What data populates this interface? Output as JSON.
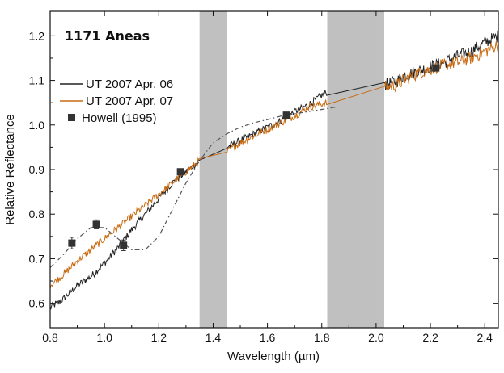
{
  "chart_data": {
    "type": "line",
    "title": "1171 Aneas",
    "xlabel": "Wavelength (µm)",
    "ylabel": "Relative Reflectance",
    "xlim": [
      0.8,
      2.45
    ],
    "ylim": [
      0.545,
      1.255
    ],
    "xticks": [
      0.8,
      1.0,
      1.2,
      1.4,
      1.6,
      1.8,
      2.0,
      2.2,
      2.4
    ],
    "xtick_labels": [
      "0.8",
      "1.0",
      "1.2",
      "1.4",
      "1.6",
      "1.8",
      "2.0",
      "2.2",
      "2.4"
    ],
    "yticks": [
      0.6,
      0.7,
      0.8,
      0.9,
      1.0,
      1.1,
      1.2
    ],
    "ytick_labels": [
      "0.6",
      "0.7",
      "0.8",
      "0.9",
      "1.0",
      "1.1",
      "1.2"
    ],
    "grid": false,
    "legend_position": "top-left",
    "shaded_regions": [
      {
        "x0": 1.35,
        "x1": 1.45,
        "color": "#c0c0c0"
      },
      {
        "x0": 1.82,
        "x1": 2.03,
        "color": "#c0c0c0"
      }
    ],
    "series": [
      {
        "name": "UT 2007 Apr. 06",
        "style": "line",
        "color": "#222222",
        "noise": 0.008,
        "points": [
          {
            "x": 0.8,
            "y": 0.59
          },
          {
            "x": 0.85,
            "y": 0.61
          },
          {
            "x": 0.9,
            "y": 0.64
          },
          {
            "x": 0.95,
            "y": 0.66
          },
          {
            "x": 1.0,
            "y": 0.69
          },
          {
            "x": 1.05,
            "y": 0.725
          },
          {
            "x": 1.1,
            "y": 0.765
          },
          {
            "x": 1.15,
            "y": 0.8
          },
          {
            "x": 1.2,
            "y": 0.835
          },
          {
            "x": 1.25,
            "y": 0.87
          },
          {
            "x": 1.3,
            "y": 0.895
          },
          {
            "x": 1.35,
            "y": 0.92
          },
          {
            "x": 1.45,
            "y": 0.95
          },
          {
            "x": 1.5,
            "y": 0.965
          },
          {
            "x": 1.55,
            "y": 0.98
          },
          {
            "x": 1.6,
            "y": 0.995
          },
          {
            "x": 1.65,
            "y": 1.01
          },
          {
            "x": 1.7,
            "y": 1.03
          },
          {
            "x": 1.75,
            "y": 1.045
          },
          {
            "x": 1.82,
            "y": 1.075
          },
          {
            "x": 2.03,
            "y": 1.09
          },
          {
            "x": 2.08,
            "y": 1.1
          },
          {
            "x": 2.1,
            "y": 1.11
          },
          {
            "x": 2.15,
            "y": 1.12
          },
          {
            "x": 2.2,
            "y": 1.13
          },
          {
            "x": 2.25,
            "y": 1.14
          },
          {
            "x": 2.3,
            "y": 1.155
          },
          {
            "x": 2.35,
            "y": 1.165
          },
          {
            "x": 2.4,
            "y": 1.185
          },
          {
            "x": 2.45,
            "y": 1.2
          }
        ]
      },
      {
        "name": "UT 2007 Apr. 07",
        "style": "line",
        "color": "#c86a10",
        "noise": 0.008,
        "points": [
          {
            "x": 0.8,
            "y": 0.64
          },
          {
            "x": 0.85,
            "y": 0.665
          },
          {
            "x": 0.9,
            "y": 0.695
          },
          {
            "x": 0.95,
            "y": 0.72
          },
          {
            "x": 1.0,
            "y": 0.745
          },
          {
            "x": 1.05,
            "y": 0.77
          },
          {
            "x": 1.1,
            "y": 0.795
          },
          {
            "x": 1.15,
            "y": 0.82
          },
          {
            "x": 1.2,
            "y": 0.845
          },
          {
            "x": 1.25,
            "y": 0.87
          },
          {
            "x": 1.3,
            "y": 0.895
          },
          {
            "x": 1.35,
            "y": 0.92
          },
          {
            "x": 1.45,
            "y": 0.94
          },
          {
            "x": 1.5,
            "y": 0.96
          },
          {
            "x": 1.55,
            "y": 0.975
          },
          {
            "x": 1.6,
            "y": 0.99
          },
          {
            "x": 1.65,
            "y": 1.005
          },
          {
            "x": 1.7,
            "y": 1.02
          },
          {
            "x": 1.75,
            "y": 1.04
          },
          {
            "x": 1.82,
            "y": 1.05
          },
          {
            "x": 2.03,
            "y": 1.085
          },
          {
            "x": 2.08,
            "y": 1.09
          },
          {
            "x": 2.1,
            "y": 1.1
          },
          {
            "x": 2.15,
            "y": 1.115
          },
          {
            "x": 2.2,
            "y": 1.125
          },
          {
            "x": 2.25,
            "y": 1.135
          },
          {
            "x": 2.3,
            "y": 1.14
          },
          {
            "x": 2.35,
            "y": 1.15
          },
          {
            "x": 2.4,
            "y": 1.165
          },
          {
            "x": 2.45,
            "y": 1.18
          }
        ]
      },
      {
        "name": "Howell (1995) fit",
        "style": "dashdot",
        "color": "#555555",
        "in_legend": false,
        "points": [
          {
            "x": 0.8,
            "y": 0.68
          },
          {
            "x": 0.85,
            "y": 0.71
          },
          {
            "x": 0.9,
            "y": 0.745
          },
          {
            "x": 0.95,
            "y": 0.77
          },
          {
            "x": 1.0,
            "y": 0.77
          },
          {
            "x": 1.05,
            "y": 0.745
          },
          {
            "x": 1.1,
            "y": 0.72
          },
          {
            "x": 1.15,
            "y": 0.72
          },
          {
            "x": 1.2,
            "y": 0.75
          },
          {
            "x": 1.25,
            "y": 0.81
          },
          {
            "x": 1.3,
            "y": 0.87
          },
          {
            "x": 1.35,
            "y": 0.92
          },
          {
            "x": 1.4,
            "y": 0.96
          },
          {
            "x": 1.45,
            "y": 0.98
          },
          {
            "x": 1.5,
            "y": 0.995
          },
          {
            "x": 1.55,
            "y": 1.005
          },
          {
            "x": 1.6,
            "y": 1.012
          },
          {
            "x": 1.65,
            "y": 1.02
          },
          {
            "x": 1.7,
            "y": 1.025
          },
          {
            "x": 1.75,
            "y": 1.03
          },
          {
            "x": 1.8,
            "y": 1.035
          },
          {
            "x": 1.85,
            "y": 1.04
          }
        ]
      },
      {
        "name": "Howell (1995)",
        "style": "markers",
        "marker": "square",
        "color": "#333333",
        "points": [
          {
            "x": 0.88,
            "y": 0.735,
            "err": 0.013
          },
          {
            "x": 0.97,
            "y": 0.777,
            "err": 0.01
          },
          {
            "x": 1.07,
            "y": 0.73,
            "err": 0.012
          },
          {
            "x": 1.28,
            "y": 0.895,
            "err": 0.0
          },
          {
            "x": 1.67,
            "y": 1.022,
            "err": 0.0
          },
          {
            "x": 2.22,
            "y": 1.128,
            "err": 0.0
          }
        ]
      }
    ]
  }
}
